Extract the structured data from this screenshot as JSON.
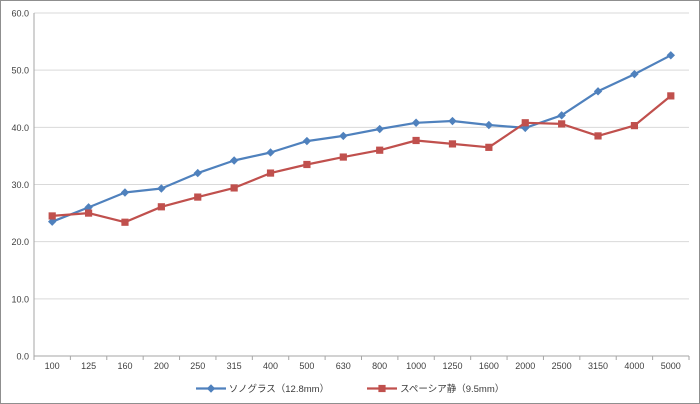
{
  "chart_data": {
    "type": "line",
    "categories": [
      "100",
      "125",
      "160",
      "200",
      "250",
      "315",
      "400",
      "500",
      "630",
      "800",
      "1000",
      "1250",
      "1600",
      "2000",
      "2500",
      "3150",
      "4000",
      "5000"
    ],
    "series": [
      {
        "name": "ソノグラス（12.8mm）",
        "color": "#4F81BD",
        "marker": "diamond",
        "values": [
          23.5,
          26.0,
          28.6,
          29.3,
          32.0,
          34.2,
          35.6,
          37.6,
          38.5,
          39.7,
          40.8,
          41.1,
          40.4,
          39.9,
          42.1,
          46.3,
          49.3,
          52.6
        ]
      },
      {
        "name": "スペーシア静（9.5mm）",
        "color": "#C0504D",
        "marker": "square",
        "values": [
          24.5,
          25.0,
          23.4,
          26.1,
          27.8,
          29.4,
          32.0,
          33.5,
          34.8,
          36.0,
          37.7,
          37.1,
          36.5,
          40.8,
          40.6,
          38.5,
          40.3,
          45.5
        ]
      }
    ],
    "ylim": [
      0,
      60
    ],
    "ytick_step": 10,
    "ytick_labels": [
      "0.0",
      "10.0",
      "20.0",
      "30.0",
      "40.0",
      "50.0",
      "60.0"
    ],
    "grid": true,
    "legend_position": "bottom"
  },
  "style": {
    "gridline_color": "#D9D9D9",
    "axis_color": "#A6A6A6",
    "tick_label_color": "#404040",
    "background_color": "#FFFFFF",
    "border_color": "#8F8F8F"
  }
}
